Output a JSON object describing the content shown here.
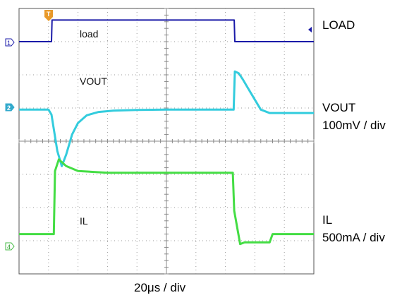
{
  "chart_data": {
    "type": "line",
    "title": "",
    "xlabel": "20μs / div",
    "ylabel": "",
    "grid": true,
    "x_divisions": 10,
    "y_divisions": 8,
    "time_per_div_us": 20,
    "series": [
      {
        "name": "LOAD",
        "channel": "1",
        "color": "#1a1aa8",
        "unit": "div",
        "x": [
          0,
          1.1,
          1.12,
          7.3,
          7.32,
          10
        ],
        "y": [
          7.0,
          7.0,
          7.65,
          7.65,
          7.0,
          7.0
        ]
      },
      {
        "name": "VOUT",
        "channel": "2",
        "color": "#33ccdd",
        "unit": "div",
        "scale": "100mV / div",
        "x": [
          0,
          1.0,
          1.1,
          1.3,
          1.45,
          1.6,
          1.8,
          2.0,
          2.3,
          2.7,
          3.2,
          4.0,
          5.0,
          6.0,
          7.0,
          7.28,
          7.32,
          7.45,
          7.6,
          7.8,
          8.0,
          8.2,
          8.5,
          9.0,
          10
        ],
        "y": [
          4.95,
          4.95,
          4.8,
          3.7,
          3.25,
          3.6,
          4.2,
          4.55,
          4.78,
          4.88,
          4.92,
          4.94,
          4.95,
          4.95,
          4.95,
          4.95,
          6.1,
          6.05,
          5.85,
          5.55,
          5.25,
          4.95,
          4.85,
          4.85,
          4.85
        ]
      },
      {
        "name": "IL",
        "channel": "4",
        "color": "#44dd44",
        "unit": "div",
        "scale": "500mA / div",
        "x": [
          0,
          1.18,
          1.22,
          1.35,
          1.6,
          2.0,
          3.0,
          4.0,
          5.0,
          6.0,
          7.0,
          7.25,
          7.3,
          7.5,
          7.65,
          7.8,
          8.2,
          8.5,
          8.6,
          10
        ],
        "y": [
          1.2,
          1.2,
          3.1,
          3.45,
          3.25,
          3.1,
          3.05,
          3.05,
          3.05,
          3.05,
          3.05,
          3.05,
          1.9,
          0.9,
          0.95,
          0.95,
          0.95,
          0.95,
          1.2,
          1.2
        ]
      }
    ]
  },
  "labels": {
    "load_right": "LOAD",
    "vout_right": "VOUT",
    "vout_scale": "100mV / div",
    "il_right": "IL",
    "il_scale": "500mA / div",
    "time_div": "20μs / div",
    "load_trace": "load",
    "vout_trace": "VOUT",
    "il_trace": "IL",
    "ch1": "1",
    "ch2": "2",
    "ch4": "4",
    "trigger": "T"
  }
}
